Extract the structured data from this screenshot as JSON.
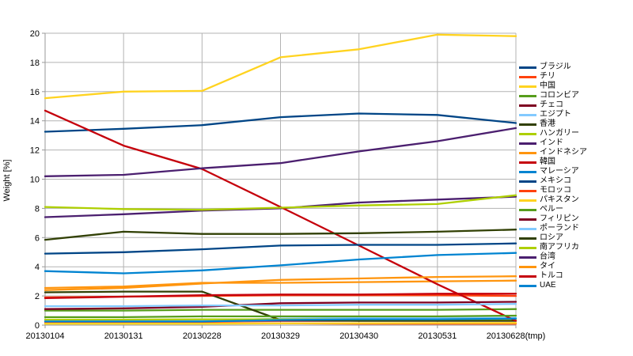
{
  "chart_data": {
    "type": "line",
    "title": "",
    "xlabel": "",
    "ylabel": "Weight [%]",
    "ylim": [
      0,
      20
    ],
    "ytick_step": 2,
    "grid": true,
    "legend_position": "right",
    "categories": [
      "20130104",
      "20130131",
      "20130228",
      "20130329",
      "20130430",
      "20130531",
      "20130628(tmp)"
    ],
    "series": [
      {
        "name": "ブラジル",
        "color": "#004586",
        "values": [
          13.25,
          13.45,
          13.7,
          14.25,
          14.5,
          14.4,
          13.85
        ]
      },
      {
        "name": "チリ",
        "color": "#FF420E",
        "values": [
          1.9,
          1.95,
          2.0,
          2.05,
          2.05,
          2.05,
          2.0
        ]
      },
      {
        "name": "中国",
        "color": "#FFD320",
        "values": [
          15.55,
          16.0,
          16.05,
          18.35,
          18.9,
          19.9,
          19.8
        ]
      },
      {
        "name": "コロンビア",
        "color": "#579D1C",
        "values": [
          1.0,
          1.0,
          1.05,
          1.05,
          1.05,
          1.05,
          1.1
        ]
      },
      {
        "name": "チェコ",
        "color": "#7E0021",
        "values": [
          0.27,
          0.27,
          0.28,
          0.3,
          0.3,
          0.3,
          0.3
        ]
      },
      {
        "name": "エジプト",
        "color": "#83CAFF",
        "values": [
          0.3,
          0.3,
          0.3,
          0.45,
          0.5,
          0.5,
          0.5
        ]
      },
      {
        "name": "香港",
        "color": "#314004",
        "values": [
          2.25,
          2.3,
          2.3,
          0.35,
          0.3,
          0.3,
          0.3
        ]
      },
      {
        "name": "ハンガリー",
        "color": "#AECF00",
        "values": [
          0.38,
          0.38,
          0.4,
          0.4,
          0.4,
          0.4,
          0.42
        ]
      },
      {
        "name": "インド",
        "color": "#4B1F6F",
        "values": [
          7.4,
          7.6,
          7.85,
          8.0,
          8.4,
          8.6,
          8.8
        ]
      },
      {
        "name": "インドネシア",
        "color": "#FF950E",
        "values": [
          2.55,
          2.65,
          2.9,
          2.9,
          2.95,
          3.0,
          3.05
        ]
      },
      {
        "name": "韓国",
        "color": "#C5000B",
        "values": [
          14.7,
          12.3,
          10.7,
          8.1,
          5.45,
          2.8,
          0.3
        ]
      },
      {
        "name": "マレーシア",
        "color": "#0084D1",
        "values": [
          3.7,
          3.55,
          3.75,
          4.1,
          4.5,
          4.8,
          4.95
        ]
      },
      {
        "name": "メキシコ",
        "color": "#004586",
        "values": [
          4.9,
          5.0,
          5.2,
          5.45,
          5.5,
          5.5,
          5.6
        ]
      },
      {
        "name": "モロッコ",
        "color": "#FF420E",
        "values": [
          0.15,
          0.15,
          0.15,
          0.12,
          0.1,
          0.1,
          0.1
        ]
      },
      {
        "name": "パキスタン",
        "color": "#FFD320",
        "values": [
          0.1,
          0.1,
          0.1,
          0.12,
          0.13,
          0.14,
          0.15
        ]
      },
      {
        "name": "ペルー",
        "color": "#579D1C",
        "values": [
          0.55,
          0.55,
          0.6,
          0.6,
          0.6,
          0.6,
          0.65
        ]
      },
      {
        "name": "フィリピン",
        "color": "#7E0021",
        "values": [
          1.1,
          1.15,
          1.25,
          1.5,
          1.55,
          1.55,
          1.6
        ]
      },
      {
        "name": "ポーランド",
        "color": "#83CAFF",
        "values": [
          1.3,
          1.3,
          1.35,
          1.35,
          1.4,
          1.4,
          1.45
        ]
      },
      {
        "name": "ロシア",
        "color": "#314004",
        "values": [
          5.85,
          6.4,
          6.25,
          6.25,
          6.3,
          6.4,
          6.55
        ]
      },
      {
        "name": "南アフリカ",
        "color": "#AECF00",
        "values": [
          8.1,
          7.95,
          7.9,
          8.05,
          8.2,
          8.3,
          8.9
        ]
      },
      {
        "name": "台湾",
        "color": "#4B1F6F",
        "values": [
          10.2,
          10.3,
          10.75,
          11.1,
          11.9,
          12.6,
          13.5
        ]
      },
      {
        "name": "タイ",
        "color": "#FF950E",
        "values": [
          2.4,
          2.55,
          2.85,
          3.1,
          3.2,
          3.3,
          3.35
        ]
      },
      {
        "name": "トルコ",
        "color": "#C5000B",
        "values": [
          1.85,
          1.95,
          2.05,
          2.1,
          2.1,
          2.15,
          2.15
        ]
      },
      {
        "name": "UAE",
        "color": "#0084D1",
        "values": [
          0.25,
          0.25,
          0.25,
          0.35,
          0.4,
          0.4,
          0.45
        ]
      }
    ],
    "styles": {
      "grid_color": "#b3b3b3",
      "frame_color": "#999999",
      "tick_text_color": "#000000",
      "line_width": 2.3
    }
  }
}
